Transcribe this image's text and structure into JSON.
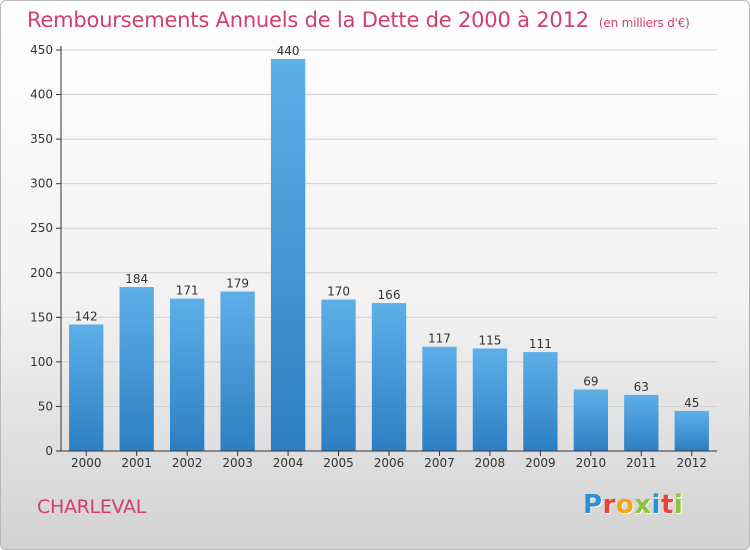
{
  "header": {
    "title": "Remboursements Annuels de la Dette de 2000 à 2012",
    "subtitle": "(en milliers d'€)"
  },
  "footer": {
    "commune": "CHARLEVAL",
    "brand_letters": [
      "P",
      "r",
      "o",
      "x",
      "i",
      "t",
      "i"
    ],
    "brand_colors": [
      "#2e8fd6",
      "#e8443a",
      "#f2a516",
      "#8cc43c",
      "#2e8fd6",
      "#e8443a",
      "#8cc43c"
    ]
  },
  "colors": {
    "bar_light": "#5eaee8",
    "bar_dark": "#2c7fc2",
    "grid": "#d0d0d0",
    "axis": "#333333",
    "title": "#d0406a"
  },
  "chart_data": {
    "type": "bar",
    "categories": [
      "2000",
      "2001",
      "2002",
      "2003",
      "2004",
      "2005",
      "2006",
      "2007",
      "2008",
      "2009",
      "2010",
      "2011",
      "2012"
    ],
    "values": [
      142,
      184,
      171,
      179,
      440,
      170,
      166,
      117,
      115,
      111,
      69,
      63,
      45
    ],
    "yticks": [
      0,
      50,
      100,
      150,
      200,
      250,
      300,
      350,
      400,
      450
    ],
    "ylim": [
      0,
      450
    ],
    "grid": true
  }
}
